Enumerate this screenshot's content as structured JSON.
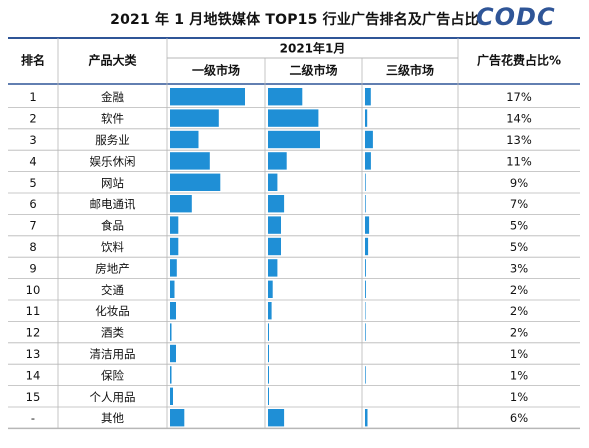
{
  "title": "2021 年 1 月地铁媒体 TOP15 行业广告排名及广告占比",
  "logo": "CODC",
  "colors": {
    "bar": "#1f8fd6",
    "grid": "#b7b7b7",
    "axis": "#7f7f7f",
    "header_line": "#2f5597"
  },
  "chart_data": {
    "type": "table",
    "headers": {
      "rank": "排名",
      "category": "产品大类",
      "month": "2021年1月",
      "tier1": "一级市场",
      "tier2": "二级市场",
      "tier3": "三级市场",
      "share": "广告花费占比%"
    },
    "rows": [
      {
        "rank": "1",
        "category": "金融",
        "tier1": 1.0,
        "tier2": 0.66,
        "tier3": 0.32,
        "share": "17%"
      },
      {
        "rank": "2",
        "category": "软件",
        "tier1": 0.65,
        "tier2": 0.97,
        "tier3": 0.12,
        "share": "14%"
      },
      {
        "rank": "3",
        "category": "服务业",
        "tier1": 0.38,
        "tier2": 1.0,
        "tier3": 0.44,
        "share": "13%"
      },
      {
        "rank": "4",
        "category": "娱乐休闲",
        "tier1": 0.53,
        "tier2": 0.36,
        "tier3": 0.33,
        "share": "11%"
      },
      {
        "rank": "5",
        "category": "网站",
        "tier1": 0.67,
        "tier2": 0.18,
        "tier3": 0.04,
        "share": "9%"
      },
      {
        "rank": "6",
        "category": "邮电通讯",
        "tier1": 0.29,
        "tier2": 0.31,
        "tier3": 0.04,
        "share": "7%"
      },
      {
        "rank": "7",
        "category": "食品",
        "tier1": 0.11,
        "tier2": 0.25,
        "tier3": 0.23,
        "share": "5%"
      },
      {
        "rank": "8",
        "category": "饮料",
        "tier1": 0.11,
        "tier2": 0.25,
        "tier3": 0.17,
        "share": "5%"
      },
      {
        "rank": "9",
        "category": "房地产",
        "tier1": 0.09,
        "tier2": 0.18,
        "tier3": 0.05,
        "share": "3%"
      },
      {
        "rank": "10",
        "category": "交通",
        "tier1": 0.06,
        "tier2": 0.09,
        "tier3": 0.05,
        "share": "2%"
      },
      {
        "rank": "11",
        "category": "化妆品",
        "tier1": 0.08,
        "tier2": 0.07,
        "tier3": 0.03,
        "share": "2%"
      },
      {
        "rank": "12",
        "category": "酒类",
        "tier1": 0.02,
        "tier2": 0.02,
        "tier3": 0.04,
        "share": "2%"
      },
      {
        "rank": "13",
        "category": "清洁用品",
        "tier1": 0.08,
        "tier2": 0.02,
        "tier3": 0.0,
        "share": "1%"
      },
      {
        "rank": "14",
        "category": "保险",
        "tier1": 0.02,
        "tier2": 0.02,
        "tier3": 0.04,
        "share": "1%"
      },
      {
        "rank": "15",
        "category": "个人用品",
        "tier1": 0.04,
        "tier2": 0.02,
        "tier3": 0.0,
        "share": "1%"
      },
      {
        "rank": "-",
        "category": "其他",
        "tier1": 0.19,
        "tier2": 0.31,
        "tier3": 0.14,
        "share": "6%"
      }
    ]
  }
}
